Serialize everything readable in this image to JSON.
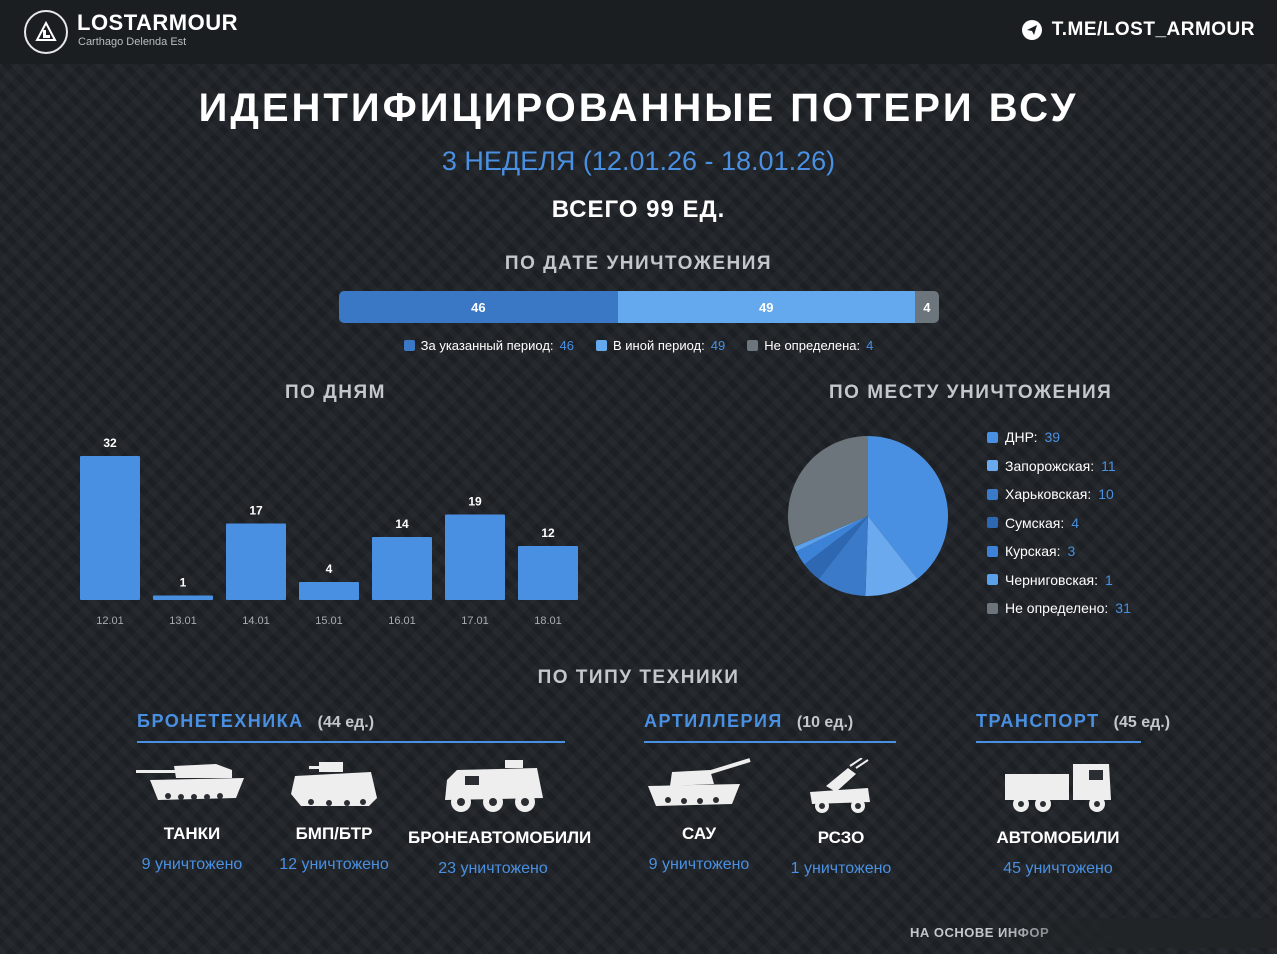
{
  "header": {
    "brand": "LOSTARMOUR",
    "brand_sub": "Carthago Delenda Est",
    "telegram": "T.ME/LOST_ARMOUR"
  },
  "title": "ИДЕНТИФИЦИРОВАННЫЕ ПОТЕРИ ВСУ",
  "subtitle": "3 НЕДЕЛЯ (12.01.26 - 18.01.26)",
  "total": "ВСЕГО 99 ЕД.",
  "sections": {
    "by_date": "ПО ДАТЕ УНИЧТОЖЕНИЯ",
    "by_days": "ПО ДНЯМ",
    "by_place": "ПО МЕСТУ УНИЧТОЖЕНИЯ",
    "by_type": "ПО ТИПУ ТЕХНИКИ"
  },
  "colors": {
    "accent": "#4a90e2",
    "stack_period": "#3a78c6",
    "stack_other": "#64a8ee",
    "stack_unknown": "#6c747c",
    "bars": "#4a90e2"
  },
  "chart_data": [
    {
      "type": "bar",
      "subtype": "stacked-horizontal",
      "series": [
        {
          "name": "За указанный период",
          "values": [
            46
          ],
          "color": "#3a78c6"
        },
        {
          "name": "В иной период",
          "values": [
            49
          ],
          "color": "#64a8ee"
        },
        {
          "name": "Не определена",
          "values": [
            4
          ],
          "color": "#6c747c"
        }
      ],
      "legend": [
        {
          "label": "За указанный период:",
          "value": "46",
          "color": "#3a78c6"
        },
        {
          "label": "В иной период:",
          "value": "49",
          "color": "#64a8ee"
        },
        {
          "label": "Не определена:",
          "value": "4",
          "color": "#6c747c"
        }
      ]
    },
    {
      "type": "bar",
      "categories": [
        "12.01",
        "13.01",
        "14.01",
        "15.01",
        "16.01",
        "17.01",
        "18.01"
      ],
      "values": [
        32,
        1,
        17,
        4,
        14,
        19,
        12
      ],
      "ylim": [
        0,
        32
      ],
      "grid": false
    },
    {
      "type": "pie",
      "slices": [
        {
          "label": "ДНР:",
          "value": 39,
          "color": "#4a90e2"
        },
        {
          "label": "Запорожская:",
          "value": 11,
          "color": "#6aa9ee"
        },
        {
          "label": "Харьковская:",
          "value": 10,
          "color": "#3a7ac9"
        },
        {
          "label": "Сумская:",
          "value": 4,
          "color": "#2f68b2"
        },
        {
          "label": "Курская:",
          "value": 3,
          "color": "#3c82d6"
        },
        {
          "label": "Черниговская:",
          "value": 1,
          "color": "#5aa0ea"
        },
        {
          "label": "Не определено:",
          "value": 31,
          "color": "#6c747c"
        }
      ],
      "legend_position": "right"
    }
  ],
  "categories": [
    {
      "title": "БРОНЕТЕХНИКА",
      "count": "(44 ед.)",
      "items": [
        {
          "name": "ТАНКИ",
          "value": "9 уничтожено",
          "icon": "tank-icon"
        },
        {
          "name": "БМП/БТР",
          "value": "12 уничтожено",
          "icon": "ifv-icon"
        },
        {
          "name": "БРОНЕАВТОМОБИЛИ",
          "value": "23 уничтожено",
          "icon": "armored-car-icon"
        }
      ]
    },
    {
      "title": "АРТИЛЛЕРИЯ",
      "count": "(10 ед.)",
      "items": [
        {
          "name": "САУ",
          "value": "9 уничтожено",
          "icon": "spg-icon"
        },
        {
          "name": "РСЗО",
          "value": "1 уничтожено",
          "icon": "mlrs-icon"
        }
      ]
    },
    {
      "title": "ТРАНСПОРТ",
      "count": "(45 ед.)",
      "items": [
        {
          "name": "АВТОМОБИЛИ",
          "value": "45 уничтожено",
          "icon": "truck-icon"
        }
      ]
    }
  ],
  "footer": "НА ОСНОВЕ ИНФОР"
}
